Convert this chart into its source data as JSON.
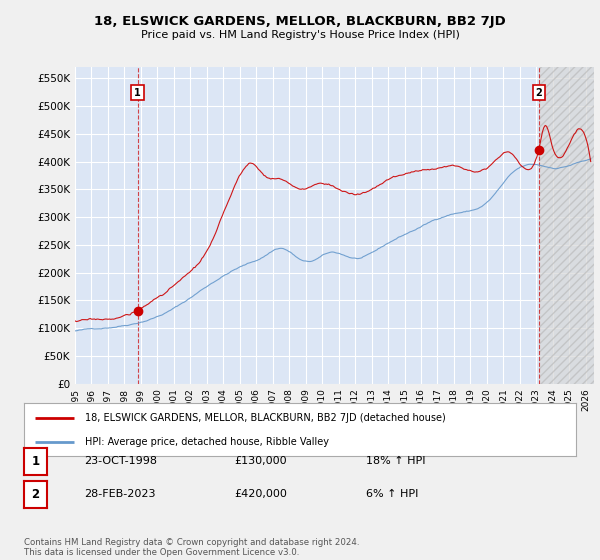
{
  "title": "18, ELSWICK GARDENS, MELLOR, BLACKBURN, BB2 7JD",
  "subtitle": "Price paid vs. HM Land Registry's House Price Index (HPI)",
  "ylabel_ticks": [
    "£0",
    "£50K",
    "£100K",
    "£150K",
    "£200K",
    "£250K",
    "£300K",
    "£350K",
    "£400K",
    "£450K",
    "£500K",
    "£550K"
  ],
  "ytick_vals": [
    0,
    50000,
    100000,
    150000,
    200000,
    250000,
    300000,
    350000,
    400000,
    450000,
    500000,
    550000
  ],
  "ylim": [
    0,
    570000
  ],
  "xlim_start": 1995.0,
  "xlim_end": 2026.5,
  "background_color": "#e8eef7",
  "plot_bg_color": "#dce6f5",
  "grid_color": "#ffffff",
  "hpi_line_color": "#6699cc",
  "price_line_color": "#cc0000",
  "sale1_date": 1998.81,
  "sale1_price": 130000,
  "sale2_date": 2023.16,
  "sale2_price": 420000,
  "legend_line1": "18, ELSWICK GARDENS, MELLOR, BLACKBURN, BB2 7JD (detached house)",
  "legend_line2": "HPI: Average price, detached house, Ribble Valley",
  "table_row1": [
    "1",
    "23-OCT-1998",
    "£130,000",
    "18% ↑ HPI"
  ],
  "table_row2": [
    "2",
    "28-FEB-2023",
    "£420,000",
    "6% ↑ HPI"
  ],
  "footnote": "Contains HM Land Registry data © Crown copyright and database right 2024.\nThis data is licensed under the Open Government Licence v3.0.",
  "xtick_years": [
    1995,
    1996,
    1997,
    1998,
    1999,
    2000,
    2001,
    2002,
    2003,
    2004,
    2005,
    2006,
    2007,
    2008,
    2009,
    2010,
    2011,
    2012,
    2013,
    2014,
    2015,
    2016,
    2017,
    2018,
    2019,
    2020,
    2021,
    2022,
    2023,
    2024,
    2025,
    2026
  ],
  "hatch_start": 2023.16,
  "hatch_end": 2026.5
}
